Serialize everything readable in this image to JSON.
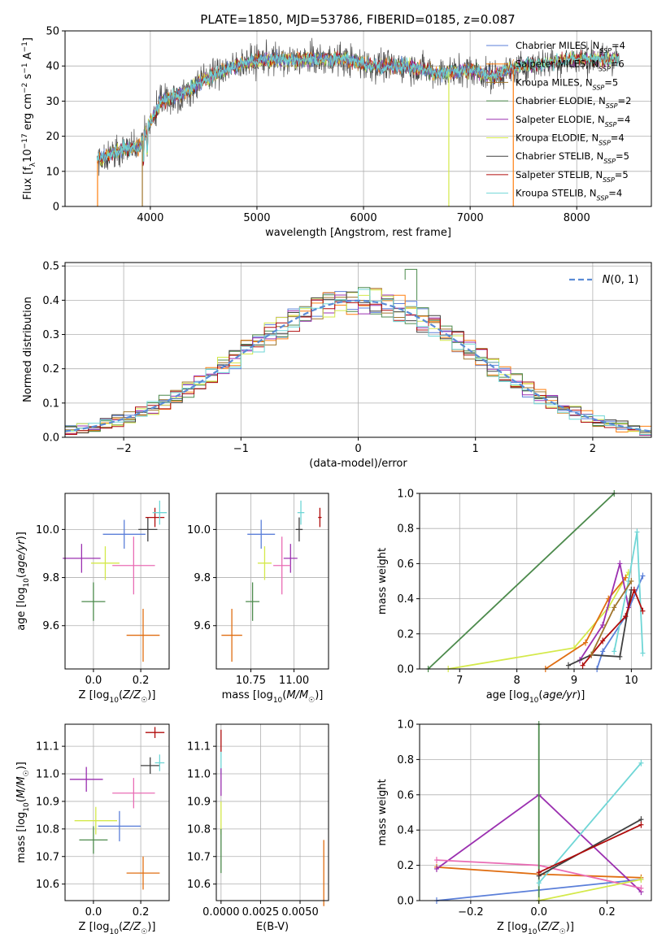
{
  "title": "PLATE=1850, MJD=53786, FIBERID=0185, z=0.087",
  "colors": {
    "chabrier_miles": "#5b7fd9",
    "salpeter_miles": "#ff7f0e",
    "kroupa_miles": "#a0752c",
    "chabrier_elodie": "#4c8a4c",
    "salpeter_elodie": "#9b30b0",
    "kroupa_elodie": "#d4e94a",
    "chabrier_stelib": "#404040",
    "salpeter_stelib": "#b00c0c",
    "kroupa_stelib": "#6fd6d6",
    "pink": "#e96cb4",
    "orange": "#e06e12",
    "normal_curve": "#5a8bd6"
  },
  "chart_data": [
    {
      "type": "line",
      "id": "spectrum",
      "xlabel": "wavelength [Angstrom, rest frame]",
      "ylabel": "Flux [f_λ 10^-17 erg cm^-2 s^-1 A^-1]",
      "xlim": [
        3200,
        8700
      ],
      "ylim": [
        0,
        50
      ],
      "xticks": [
        "4000",
        "5000",
        "6000",
        "7000",
        "8000"
      ],
      "yticks": [
        "0",
        "10",
        "20",
        "30",
        "40",
        "50"
      ],
      "legend_position": "top-right",
      "legend": [
        "Chabrier MILES, N_SSP=4",
        "Salpeter MILES, N_SSP=6",
        "Kroupa MILES, N_SSP=5",
        "Chabrier ELODIE, N_SSP=2",
        "Salpeter ELODIE, N_SSP=4",
        "Kroupa ELODIE, N_SSP=4",
        "Chabrier STELIB, N_SSP=5",
        "Salpeter STELIB, N_SSP=5",
        "Kroupa STELIB, N_SSP=4"
      ],
      "continuum": {
        "x": [
          3500,
          3700,
          3900,
          4000,
          4100,
          4300,
          4500,
          4700,
          4900,
          5100,
          5300,
          5500,
          5800,
          6100,
          6400,
          6700,
          7000,
          7200,
          7500,
          8000,
          8400
        ],
        "y": [
          13,
          16,
          17,
          24,
          30,
          32,
          36,
          39,
          41,
          42,
          41.5,
          42,
          42,
          40,
          40,
          38,
          39,
          37,
          40,
          42,
          42
        ]
      }
    },
    {
      "type": "line",
      "id": "residuals",
      "xlabel": "(data-model)/error",
      "ylabel": "Normed distribution",
      "xlim": [
        -2.5,
        2.5
      ],
      "ylim": [
        0,
        0.51
      ],
      "xticks": [
        "−2",
        "−1",
        "0",
        "1",
        "2"
      ],
      "yticks": [
        "0.0",
        "0.1",
        "0.2",
        "0.3",
        "0.4",
        "0.5"
      ],
      "legend": [
        "N(0,1)"
      ],
      "legend_position": "top-right",
      "bin_width": 0.1,
      "bin_start": -2.5
    },
    {
      "type": "scatter",
      "id": "age_vs_Z",
      "xlabel": "Z [log10(Z/Z☉)]",
      "ylabel": "age [log10(age/yr)]",
      "xlim": [
        -0.12,
        0.32
      ],
      "ylim": [
        9.42,
        10.15
      ],
      "xticks": [
        "0.0",
        "0.2"
      ],
      "yticks": [
        "9.6",
        "9.8",
        "10.0"
      ],
      "series": [
        {
          "color": "chabrier_miles",
          "x": 0.13,
          "y": 9.98,
          "xerr": 0.09,
          "yerr": 0.06
        },
        {
          "color": "orange",
          "x": 0.21,
          "y": 9.56,
          "xerr": 0.07,
          "yerr": 0.11
        },
        {
          "color": "chabrier_elodie",
          "x": 0.0,
          "y": 9.7,
          "xerr": 0.05,
          "yerr": 0.08
        },
        {
          "color": "salpeter_elodie",
          "x": -0.05,
          "y": 9.88,
          "xerr": 0.08,
          "yerr": 0.06
        },
        {
          "color": "pink",
          "x": 0.17,
          "y": 9.85,
          "xerr": 0.09,
          "yerr": 0.12
        },
        {
          "color": "kroupa_elodie",
          "x": 0.05,
          "y": 9.86,
          "xerr": 0.06,
          "yerr": 0.07
        },
        {
          "color": "chabrier_stelib",
          "x": 0.23,
          "y": 10.0,
          "xerr": 0.04,
          "yerr": 0.05
        },
        {
          "color": "salpeter_stelib",
          "x": 0.26,
          "y": 10.05,
          "xerr": 0.04,
          "yerr": 0.04
        },
        {
          "color": "kroupa_stelib",
          "x": 0.28,
          "y": 10.07,
          "xerr": 0.03,
          "yerr": 0.05
        }
      ]
    },
    {
      "type": "scatter",
      "id": "age_vs_mass",
      "xlabel": "mass [log10(M/M☉)]",
      "ylabel": "",
      "xlim": [
        10.55,
        11.2
      ],
      "ylim": [
        9.42,
        10.15
      ],
      "xticks": [
        "10.75",
        "11.00"
      ],
      "yticks": [
        "9.6",
        "9.8",
        "10.0"
      ],
      "series": [
        {
          "color": "chabrier_miles",
          "x": 10.81,
          "y": 9.98,
          "xerr": 0.08,
          "yerr": 0.06
        },
        {
          "color": "orange",
          "x": 10.64,
          "y": 9.56,
          "xerr": 0.06,
          "yerr": 0.11
        },
        {
          "color": "chabrier_elodie",
          "x": 10.76,
          "y": 9.7,
          "xerr": 0.04,
          "yerr": 0.08
        },
        {
          "color": "salpeter_elodie",
          "x": 10.98,
          "y": 9.88,
          "xerr": 0.04,
          "yerr": 0.06
        },
        {
          "color": "pink",
          "x": 10.93,
          "y": 9.85,
          "xerr": 0.05,
          "yerr": 0.12
        },
        {
          "color": "kroupa_elodie",
          "x": 10.83,
          "y": 9.86,
          "xerr": 0.04,
          "yerr": 0.07
        },
        {
          "color": "chabrier_stelib",
          "x": 11.03,
          "y": 10.0,
          "xerr": 0.02,
          "yerr": 0.05
        },
        {
          "color": "salpeter_stelib",
          "x": 11.15,
          "y": 10.05,
          "xerr": 0.01,
          "yerr": 0.04
        },
        {
          "color": "kroupa_stelib",
          "x": 11.04,
          "y": 10.07,
          "xerr": 0.02,
          "yerr": 0.05
        }
      ]
    },
    {
      "type": "line",
      "id": "weight_vs_age",
      "xlabel": "age [log10(age/yr)]",
      "ylabel": "mass weight",
      "xlim": [
        6.3,
        10.35
      ],
      "ylim": [
        0,
        1.0
      ],
      "xticks": [
        "7",
        "8",
        "9",
        "10"
      ],
      "yticks": [
        "0.0",
        "0.2",
        "0.4",
        "0.6",
        "0.8",
        "1.0"
      ],
      "series": [
        {
          "color": "chabrier_elodie",
          "x": [
            6.45,
            9.7
          ],
          "y": [
            0.0,
            1.0
          ]
        },
        {
          "color": "kroupa_elodie",
          "x": [
            6.8,
            9.0,
            9.6,
            9.95
          ],
          "y": [
            0.0,
            0.12,
            0.35,
            0.55
          ]
        },
        {
          "color": "orange",
          "x": [
            8.5,
            9.2,
            9.6,
            9.9
          ],
          "y": [
            0.0,
            0.15,
            0.4,
            0.52
          ]
        },
        {
          "color": "chabrier_miles",
          "x": [
            9.4,
            9.5,
            9.9,
            10.2
          ],
          "y": [
            0.0,
            0.1,
            0.3,
            0.53
          ]
        },
        {
          "color": "salpeter_elodie",
          "x": [
            9.1,
            9.5,
            9.8,
            9.95
          ],
          "y": [
            0.05,
            0.25,
            0.6,
            0.35
          ]
        },
        {
          "color": "kroupa_stelib",
          "x": [
            9.7,
            9.95,
            10.1,
            10.2
          ],
          "y": [
            0.1,
            0.5,
            0.78,
            0.09
          ]
        },
        {
          "color": "chabrier_stelib",
          "x": [
            8.9,
            9.3,
            9.8,
            10.0
          ],
          "y": [
            0.02,
            0.08,
            0.07,
            0.45
          ]
        },
        {
          "color": "salpeter_stelib",
          "x": [
            9.15,
            9.5,
            9.9,
            10.05,
            10.2
          ],
          "y": [
            0.02,
            0.16,
            0.3,
            0.45,
            0.33
          ]
        },
        {
          "color": "kroupa_miles",
          "x": [
            9.3,
            9.7,
            10.0
          ],
          "y": [
            0.08,
            0.35,
            0.5
          ]
        }
      ]
    },
    {
      "type": "scatter",
      "id": "mass_vs_Z",
      "xlabel": "Z [log10(Z/Z☉)]",
      "ylabel": "mass [log10(M/M☉)]",
      "xlim": [
        -0.12,
        0.32
      ],
      "ylim": [
        10.54,
        11.18
      ],
      "xticks": [
        "0.0",
        "0.2"
      ],
      "yticks": [
        "10.6",
        "10.7",
        "10.8",
        "10.9",
        "11.0",
        "11.1"
      ],
      "series": [
        {
          "color": "salpeter_elodie",
          "x": -0.03,
          "y": 10.98,
          "xerr": 0.07,
          "yerr": 0.045
        },
        {
          "color": "pink",
          "x": 0.17,
          "y": 10.93,
          "xerr": 0.09,
          "yerr": 0.055
        },
        {
          "color": "kroupa_elodie",
          "x": 0.01,
          "y": 10.83,
          "xerr": 0.09,
          "yerr": 0.05
        },
        {
          "color": "chabrier_miles",
          "x": 0.11,
          "y": 10.81,
          "xerr": 0.09,
          "yerr": 0.055
        },
        {
          "color": "chabrier_elodie",
          "x": 0.0,
          "y": 10.76,
          "xerr": 0.06,
          "yerr": 0.05
        },
        {
          "color": "orange",
          "x": 0.21,
          "y": 10.64,
          "xerr": 0.07,
          "yerr": 0.06
        },
        {
          "color": "chabrier_stelib",
          "x": 0.24,
          "y": 11.03,
          "xerr": 0.04,
          "yerr": 0.03
        },
        {
          "color": "salpeter_stelib",
          "x": 0.26,
          "y": 11.15,
          "xerr": 0.04,
          "yerr": 0.02
        },
        {
          "color": "kroupa_stelib",
          "x": 0.28,
          "y": 11.04,
          "xerr": 0.02,
          "yerr": 0.03
        }
      ]
    },
    {
      "type": "scatter",
      "id": "mass_vs_EBV",
      "xlabel": "E(B-V)",
      "ylabel": "",
      "xlim": [
        -0.0003,
        0.0068
      ],
      "ylim": [
        10.54,
        11.18
      ],
      "xticks": [
        "0.0000",
        "0.0025",
        "0.0050"
      ],
      "yticks": [
        "10.6",
        "10.7",
        "10.8",
        "10.9",
        "11.0",
        "11.1"
      ],
      "series": [
        {
          "color": "salpeter_stelib",
          "x": 0.0,
          "y": 11.12,
          "yerr": 0.04
        },
        {
          "color": "kroupa_stelib",
          "x": 0.0,
          "y": 11.04,
          "yerr": 0.04
        },
        {
          "color": "salpeter_elodie",
          "x": 0.0,
          "y": 10.97,
          "yerr": 0.05
        },
        {
          "color": "kroupa_elodie",
          "x": 0.0,
          "y": 10.84,
          "yerr": 0.06
        },
        {
          "color": "chabrier_elodie",
          "x": 0.0,
          "y": 10.72,
          "yerr": 0.08
        },
        {
          "color": "orange",
          "x": 0.0065,
          "y": 10.64,
          "yerr": 0.12
        }
      ]
    },
    {
      "type": "line",
      "id": "weight_vs_Z",
      "xlabel": "Z [log10(Z/Z☉)]",
      "ylabel": "mass weight",
      "xlim": [
        -0.35,
        0.33
      ],
      "ylim": [
        0,
        1.0
      ],
      "xticks": [
        "−0.2",
        "0.0",
        "0.2"
      ],
      "yticks": [
        "0.0",
        "0.2",
        "0.4",
        "0.6",
        "0.8",
        "1.0"
      ],
      "series": [
        {
          "color": "chabrier_miles",
          "x": [
            -0.3,
            0.0,
            0.3
          ],
          "y": [
            0.0,
            0.06,
            0.12
          ]
        },
        {
          "color": "orange",
          "x": [
            -0.3,
            0.0,
            0.3
          ],
          "y": [
            0.19,
            0.15,
            0.13
          ]
        },
        {
          "color": "salpeter_elodie",
          "x": [
            -0.3,
            0.0,
            0.3
          ],
          "y": [
            0.18,
            0.6,
            0.05
          ]
        },
        {
          "color": "pink",
          "x": [
            -0.3,
            0.0,
            0.3
          ],
          "y": [
            0.23,
            0.2,
            0.07
          ]
        },
        {
          "color": "chabrier_elodie",
          "x": [
            0.0,
            0.0
          ],
          "y": [
            0.0,
            1.0
          ]
        },
        {
          "color": "kroupa_elodie",
          "x": [
            0.0,
            0.3
          ],
          "y": [
            0.0,
            0.12
          ]
        },
        {
          "color": "kroupa_stelib",
          "x": [
            0.0,
            0.3
          ],
          "y": [
            0.1,
            0.78
          ]
        },
        {
          "color": "chabrier_stelib",
          "x": [
            0.0,
            0.3
          ],
          "y": [
            0.14,
            0.46
          ]
        },
        {
          "color": "salpeter_stelib",
          "x": [
            0.0,
            0.3
          ],
          "y": [
            0.16,
            0.43
          ]
        }
      ]
    }
  ]
}
